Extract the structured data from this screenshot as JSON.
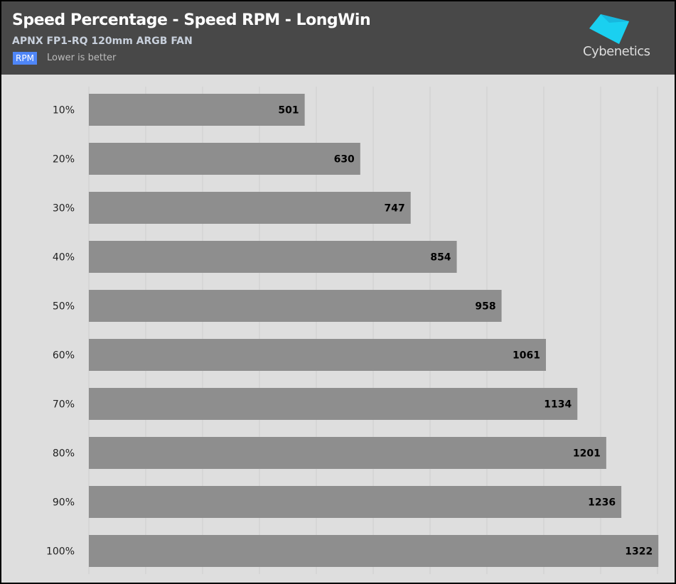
{
  "header": {
    "title": "Speed Percentage - Speed RPM - LongWin",
    "subtitle": "APNX FP1-RQ 120mm ARGB FAN",
    "badge": "RPM",
    "note": "Lower is better",
    "logo_text": "Cybenetics"
  },
  "colors": {
    "bar": "#8e8e8e",
    "background": "#dedede",
    "header": "#484848",
    "badge": "#4f86f7",
    "logo": "#1ad0f0"
  },
  "chart_data": {
    "type": "bar",
    "orientation": "horizontal",
    "title": "Speed Percentage - Speed RPM - LongWin",
    "subtitle": "APNX FP1-RQ 120mm ARGB FAN",
    "categories": [
      "10%",
      "20%",
      "30%",
      "40%",
      "50%",
      "60%",
      "70%",
      "80%",
      "90%",
      "100%"
    ],
    "values": [
      501,
      630,
      747,
      854,
      958,
      1061,
      1134,
      1201,
      1236,
      1322
    ],
    "unit": "RPM",
    "xlim": [
      0,
      1320
    ],
    "grid": true,
    "data_labels": true
  }
}
